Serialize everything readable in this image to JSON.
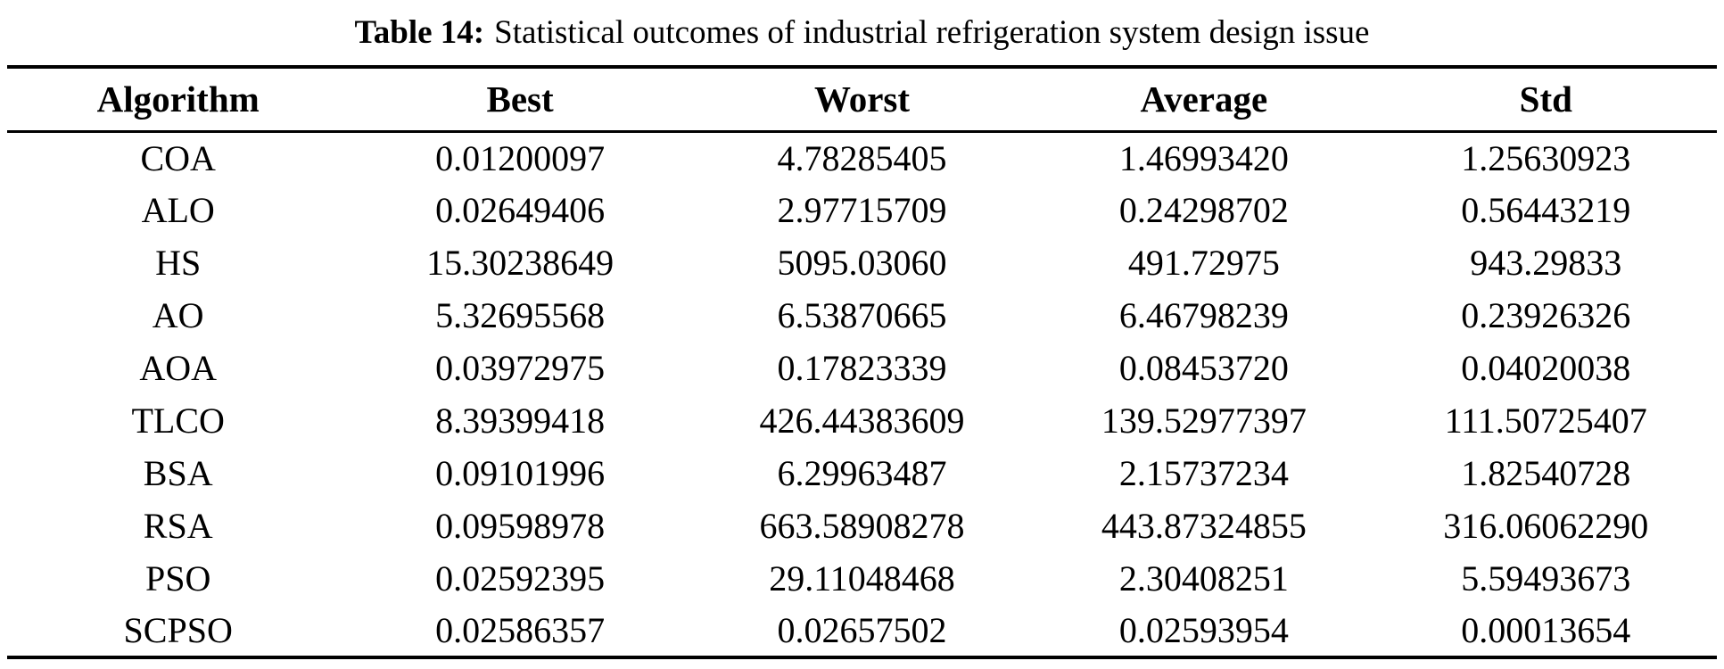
{
  "caption": {
    "label": "Table 14:",
    "text": "Statistical outcomes of industrial refrigeration system design issue"
  },
  "table": {
    "columns": [
      "Algorithm",
      "Best",
      "Worst",
      "Average",
      "Std"
    ],
    "rows": [
      {
        "algorithm": "COA",
        "best": "0.01200097",
        "worst": "4.78285405",
        "average": "1.46993420",
        "std": "1.25630923"
      },
      {
        "algorithm": "ALO",
        "best": "0.02649406",
        "worst": "2.97715709",
        "average": "0.24298702",
        "std": "0.56443219"
      },
      {
        "algorithm": "HS",
        "best": "15.30238649",
        "worst": "5095.03060",
        "average": "491.72975",
        "std": "943.29833"
      },
      {
        "algorithm": "AO",
        "best": "5.32695568",
        "worst": "6.53870665",
        "average": "6.46798239",
        "std": "0.23926326"
      },
      {
        "algorithm": "AOA",
        "best": "0.03972975",
        "worst": "0.17823339",
        "average": "0.08453720",
        "std": "0.04020038"
      },
      {
        "algorithm": "TLCO",
        "best": "8.39399418",
        "worst": "426.44383609",
        "average": "139.52977397",
        "std": "111.50725407"
      },
      {
        "algorithm": "BSA",
        "best": "0.09101996",
        "worst": "6.29963487",
        "average": "2.15737234",
        "std": "1.82540728"
      },
      {
        "algorithm": "RSA",
        "best": "0.09598978",
        "worst": "663.58908278",
        "average": "443.87324855",
        "std": "316.06062290"
      },
      {
        "algorithm": "PSO",
        "best": "0.02592395",
        "worst": "29.11048468",
        "average": "2.30408251",
        "std": "5.59493673"
      },
      {
        "algorithm": "SCPSO",
        "best": "0.02586357",
        "worst": "0.02657502",
        "average": "0.02593954",
        "std": "0.00013654"
      }
    ]
  },
  "colors": {
    "text": "#000000",
    "background": "#ffffff",
    "rule": "#000000"
  }
}
